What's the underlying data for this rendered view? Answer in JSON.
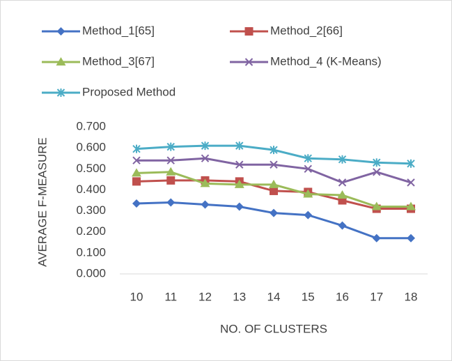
{
  "chart_data": {
    "type": "line",
    "x_label": "NO. OF CLUSTERS",
    "y_label": "AVERAGE F-MEASURE",
    "categories": [
      "10",
      "11",
      "12",
      "13",
      "14",
      "15",
      "16",
      "17",
      "18"
    ],
    "series": [
      {
        "name": "Method_1[65]",
        "color": "#4472c4",
        "marker": "diamond",
        "values": [
          0.335,
          0.34,
          0.33,
          0.32,
          0.29,
          0.28,
          0.23,
          0.17,
          0.17
        ]
      },
      {
        "name": "Method_2[66]",
        "color": "#c0504d",
        "marker": "square",
        "values": [
          0.44,
          0.445,
          0.445,
          0.44,
          0.395,
          0.39,
          0.35,
          0.31,
          0.31
        ]
      },
      {
        "name": "Method_3[67]",
        "color": "#9bbb59",
        "marker": "triangle",
        "values": [
          0.48,
          0.485,
          0.43,
          0.425,
          0.425,
          0.38,
          0.375,
          0.32,
          0.32
        ]
      },
      {
        "name": "Method_4 (K-Means)",
        "color": "#8064a2",
        "marker": "x",
        "values": [
          0.54,
          0.54,
          0.55,
          0.52,
          0.52,
          0.5,
          0.435,
          0.485,
          0.435
        ]
      },
      {
        "name": "Proposed Method",
        "color": "#4bacc6",
        "marker": "star",
        "values": [
          0.595,
          0.605,
          0.61,
          0.61,
          0.59,
          0.55,
          0.545,
          0.53,
          0.525
        ]
      }
    ],
    "ylim": [
      0,
      0.7
    ],
    "yticks": [
      {
        "value": 0,
        "label": "0.000"
      },
      {
        "value": 0.1,
        "label": "0.100"
      },
      {
        "value": 0.2,
        "label": "0.200"
      },
      {
        "value": 0.3,
        "label": "0.300"
      },
      {
        "value": 0.4,
        "label": "0.400"
      },
      {
        "value": 0.5,
        "label": "0.500"
      },
      {
        "value": 0.6,
        "label": "0.600"
      },
      {
        "value": 0.7,
        "label": "0.700"
      }
    ],
    "grid": false,
    "legend": "top"
  }
}
